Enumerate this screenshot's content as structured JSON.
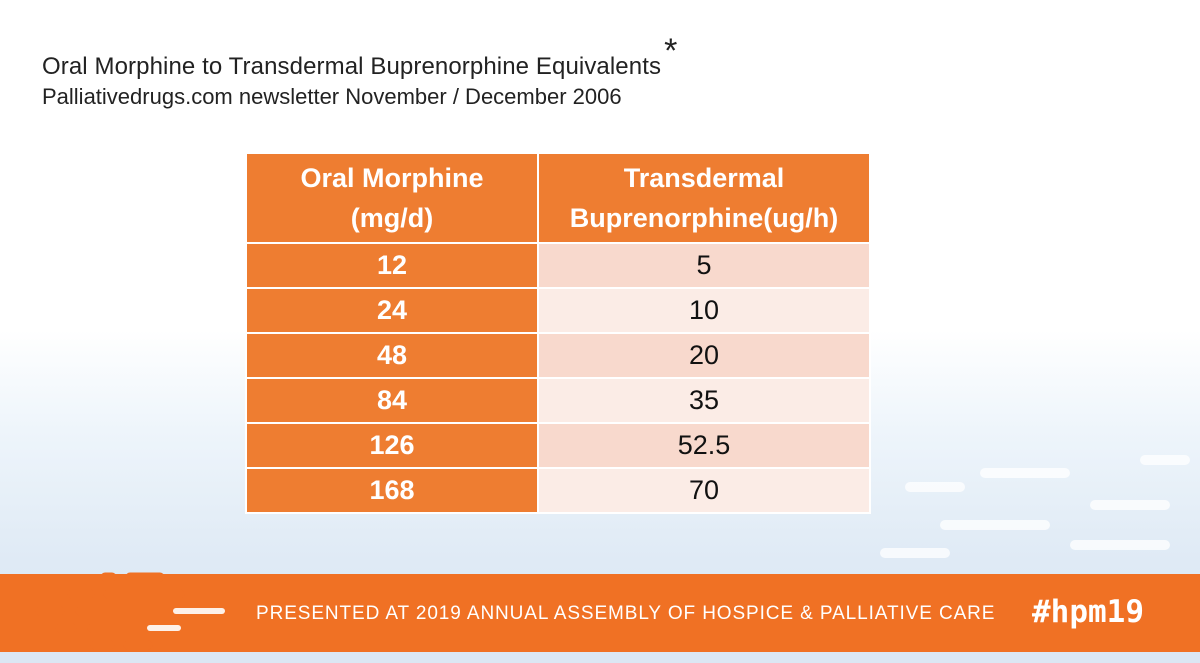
{
  "slide": {
    "title": "Oral Morphine to Transdermal Buprenorphine Equivalents",
    "title_mark": "*",
    "subtitle": "Palliativedrugs.com newsletter November / December 2006"
  },
  "table": {
    "header": {
      "col1_line1": "Oral Morphine",
      "col1_line2": "(mg/d)",
      "col2_line1": "Transdermal",
      "col2_line2": "Buprenorphine(ug/h)"
    },
    "rows": [
      {
        "morphine": "12",
        "buprenorphine": "5"
      },
      {
        "morphine": "24",
        "buprenorphine": "10"
      },
      {
        "morphine": "48",
        "buprenorphine": "20"
      },
      {
        "morphine": "84",
        "buprenorphine": "35"
      },
      {
        "morphine": "126",
        "buprenorphine": "52.5"
      },
      {
        "morphine": "168",
        "buprenorphine": "70"
      }
    ]
  },
  "footer": {
    "text": "PRESENTED AT 2019 ANNUAL ASSEMBLY OF HOSPICE & PALLIATIVE CARE",
    "hashtag": "#hpm19"
  },
  "colors": {
    "accent": "#ee7d31",
    "footer_bar": "#f07124",
    "row_odd": "#f8d9cd",
    "row_even": "#fbece6"
  },
  "icons": {
    "footer_logo": "orange-dash-lines-icon"
  }
}
